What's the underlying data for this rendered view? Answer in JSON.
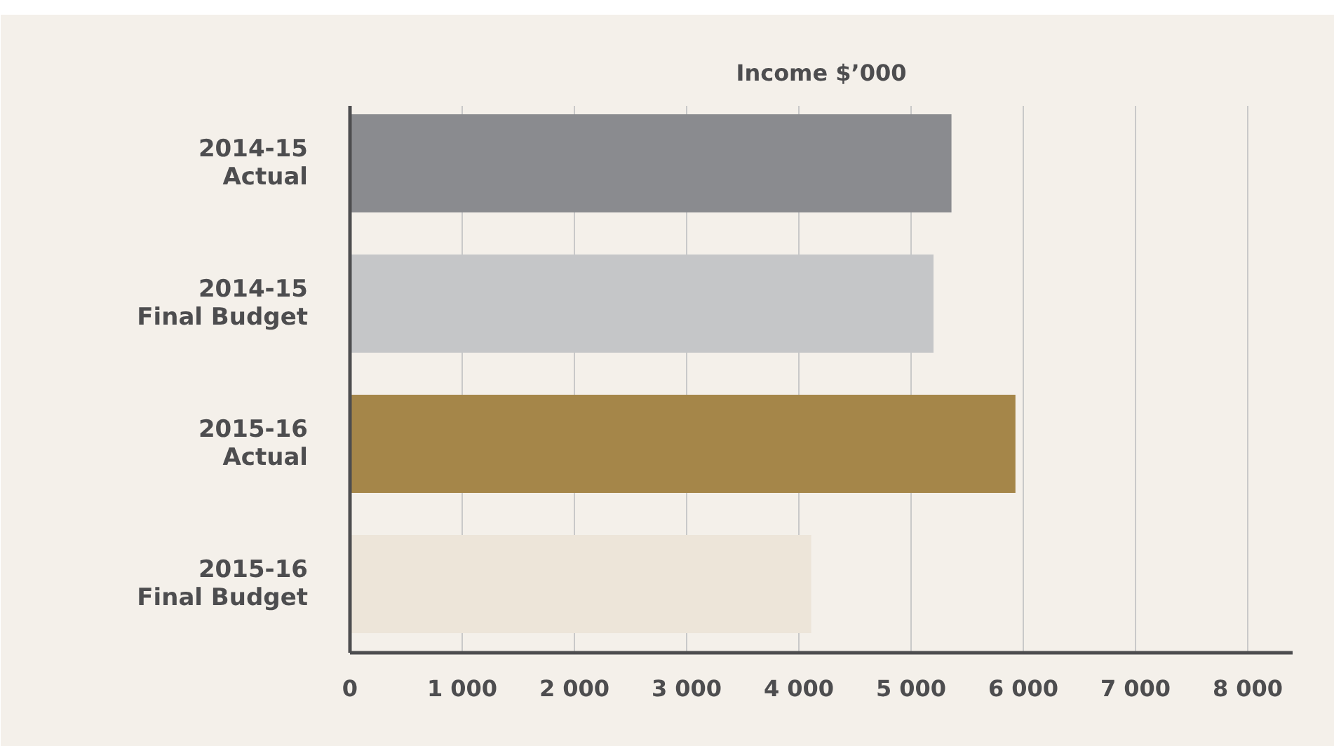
{
  "chart_data": {
    "type": "bar",
    "orientation": "horizontal",
    "title": "Income $’000",
    "categories": [
      "2014-15\nActual",
      "2014-15\nFinal Budget",
      "2015-16\nActual",
      "2015-16\nFinal Budget"
    ],
    "values": [
      5360,
      5200,
      5930,
      4110
    ],
    "colors": [
      "#8a8b8f",
      "#c5c6c8",
      "#a58649",
      "#ede5d9"
    ],
    "xlim": [
      0,
      8400
    ],
    "xticks": [
      0,
      {
        "value": 1000,
        "label": "1 000"
      },
      {
        "value": 2000,
        "label": "2 000"
      },
      {
        "value": 3000,
        "label": "3 000"
      },
      {
        "value": 4000,
        "label": "4 000"
      },
      {
        "value": 5000,
        "label": "5 000"
      },
      {
        "value": 6000,
        "label": "6 000"
      },
      {
        "value": 7000,
        "label": "7 000"
      },
      {
        "value": 8000,
        "label": "8 000"
      }
    ],
    "grid": "x"
  }
}
